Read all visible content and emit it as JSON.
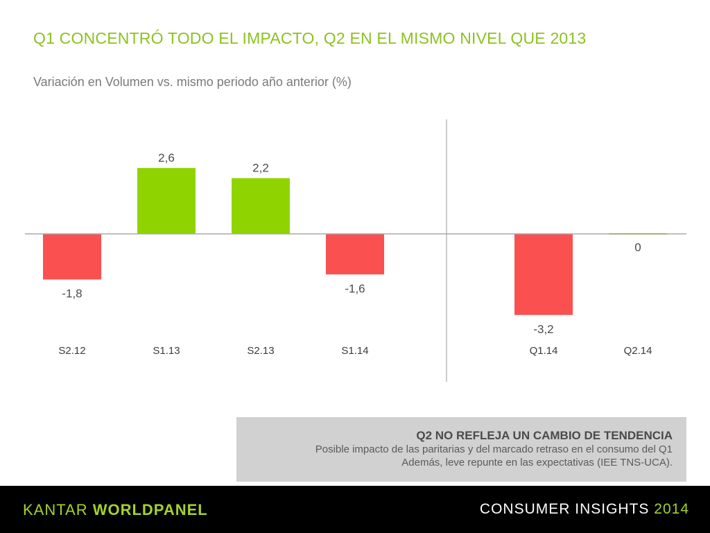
{
  "header": {
    "title": "Q1 CONCENTRÓ TODO EL IMPACTO, Q2 EN EL MISMO NIVEL QUE 2013",
    "subtitle": "Variación en Volumen vs. mismo periodo año anterior (%)"
  },
  "chart_data": {
    "type": "bar",
    "title": "",
    "categories": [
      "S2.12",
      "S1.13",
      "S2.13",
      "S1.14",
      "Q1.14",
      "Q2.14"
    ],
    "values": [
      -1.8,
      2.6,
      2.2,
      -1.6,
      -3.2,
      0
    ],
    "value_labels": [
      "-1,8",
      "2,6",
      "2,2",
      "-1,6",
      "-3,2",
      "0"
    ],
    "groups": [
      {
        "categories": [
          "S2.12",
          "S1.13",
          "S2.13",
          "S1.14"
        ]
      },
      {
        "categories": [
          "Q1.14",
          "Q2.14"
        ]
      }
    ],
    "colors": {
      "positive": "#8fd400",
      "negative": "#fa5050",
      "axis": "#a8a8a8"
    },
    "ylim": [
      -3.2,
      2.6
    ],
    "xlabel": "",
    "ylabel": "",
    "grid": false,
    "legend": "none"
  },
  "note": {
    "title": "Q2 NO REFLEJA UN CAMBIO DE TENDENCIA",
    "line1": "Posible impacto de las paritarias y del marcado retraso en el consumo del Q1",
    "line2": "Además, leve repunte en las expectativas (IEE TNS-UCA)."
  },
  "footer": {
    "brand_part1": "KANTAR ",
    "brand_part2": "WORLDPANEL",
    "tagline": "CONSUMER INSIGHTS ",
    "year": "2014"
  }
}
